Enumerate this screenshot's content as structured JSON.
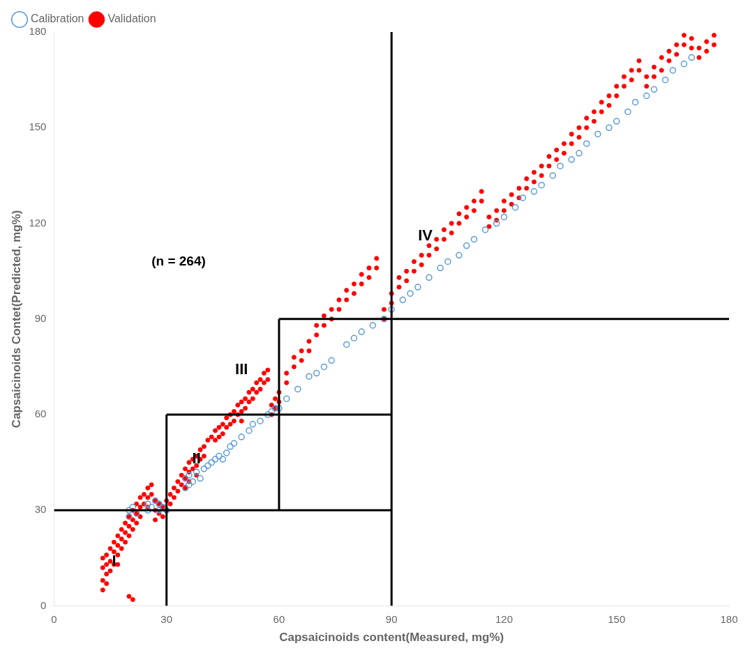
{
  "chart_data": {
    "type": "scatter",
    "xlabel": "Capsaicinoids content(Measured, mg%)",
    "ylabel": "Capsaicinoids Contet(Predicted, mg%)",
    "annotation": {
      "text": "(n = 264)",
      "x": 26,
      "y": 108
    },
    "region_labels": [
      {
        "text": "I",
        "x": 16,
        "y": 14
      },
      {
        "text": "II",
        "x": 38,
        "y": 46
      },
      {
        "text": "III",
        "x": 50,
        "y": 74
      },
      {
        "text": "IV",
        "x": 99,
        "y": 116
      }
    ],
    "xlim": [
      0,
      180
    ],
    "ylim": [
      0,
      180
    ],
    "xticks": [
      0,
      30,
      60,
      90,
      120,
      150,
      180
    ],
    "yticks": [
      0,
      30,
      60,
      90,
      120,
      150,
      180
    ],
    "grid": false,
    "legend": "upper left",
    "lines": {
      "color": "#000000",
      "segments": [
        [
          [
            0,
            30
          ],
          [
            90,
            30
          ]
        ],
        [
          [
            30,
            0
          ],
          [
            30,
            60
          ]
        ],
        [
          [
            30,
            60
          ],
          [
            90,
            60
          ]
        ],
        [
          [
            60,
            30
          ],
          [
            60,
            90
          ]
        ],
        [
          [
            60,
            90
          ],
          [
            180,
            90
          ]
        ],
        [
          [
            90,
            0
          ],
          [
            90,
            180
          ]
        ]
      ]
    },
    "series": [
      {
        "name": "Calibration",
        "color": "#5B9BD5",
        "marker": "open_circle",
        "values": [
          [
            20,
            30
          ],
          [
            20,
            28
          ],
          [
            21,
            31
          ],
          [
            22,
            29
          ],
          [
            25,
            32
          ],
          [
            25,
            30
          ],
          [
            26,
            31
          ],
          [
            27,
            33
          ],
          [
            28,
            30
          ],
          [
            28,
            32
          ],
          [
            29,
            31
          ],
          [
            30,
            30
          ],
          [
            35,
            37
          ],
          [
            35,
            40
          ],
          [
            36,
            38
          ],
          [
            36,
            41
          ],
          [
            37,
            39
          ],
          [
            38,
            42
          ],
          [
            39,
            40
          ],
          [
            40,
            43
          ],
          [
            41,
            44
          ],
          [
            42,
            45
          ],
          [
            43,
            46
          ],
          [
            44,
            47
          ],
          [
            45,
            46
          ],
          [
            46,
            48
          ],
          [
            47,
            50
          ],
          [
            48,
            51
          ],
          [
            50,
            53
          ],
          [
            52,
            55
          ],
          [
            53,
            57
          ],
          [
            55,
            58
          ],
          [
            57,
            60
          ],
          [
            58,
            61
          ],
          [
            59,
            62
          ],
          [
            60,
            62
          ],
          [
            62,
            65
          ],
          [
            65,
            68
          ],
          [
            68,
            72
          ],
          [
            70,
            73
          ],
          [
            72,
            75
          ],
          [
            74,
            77
          ],
          [
            78,
            82
          ],
          [
            80,
            84
          ],
          [
            82,
            86
          ],
          [
            85,
            88
          ],
          [
            88,
            90
          ],
          [
            90,
            93
          ],
          [
            93,
            96
          ],
          [
            95,
            98
          ],
          [
            97,
            100
          ],
          [
            100,
            103
          ],
          [
            103,
            106
          ],
          [
            105,
            108
          ],
          [
            108,
            110
          ],
          [
            110,
            113
          ],
          [
            112,
            115
          ],
          [
            115,
            118
          ],
          [
            118,
            120
          ],
          [
            120,
            122
          ],
          [
            123,
            125
          ],
          [
            125,
            128
          ],
          [
            128,
            130
          ],
          [
            130,
            132
          ],
          [
            133,
            135
          ],
          [
            135,
            138
          ],
          [
            138,
            140
          ],
          [
            140,
            142
          ],
          [
            142,
            145
          ],
          [
            145,
            148
          ],
          [
            148,
            150
          ],
          [
            150,
            152
          ],
          [
            153,
            155
          ],
          [
            155,
            158
          ],
          [
            158,
            160
          ],
          [
            160,
            162
          ],
          [
            163,
            165
          ],
          [
            165,
            168
          ],
          [
            168,
            170
          ],
          [
            170,
            172
          ]
        ]
      },
      {
        "name": "Validation",
        "color": "#FF0000",
        "marker": "circle",
        "values": [
          [
            13,
            15
          ],
          [
            13,
            12
          ],
          [
            13,
            8
          ],
          [
            13,
            5
          ],
          [
            14,
            16
          ],
          [
            14,
            13
          ],
          [
            14,
            10
          ],
          [
            14,
            7
          ],
          [
            15,
            18
          ],
          [
            15,
            14
          ],
          [
            15,
            11
          ],
          [
            16,
            20
          ],
          [
            16,
            17
          ],
          [
            16,
            13
          ],
          [
            17,
            22
          ],
          [
            17,
            19
          ],
          [
            17,
            16
          ],
          [
            17,
            13
          ],
          [
            18,
            24
          ],
          [
            18,
            21
          ],
          [
            18,
            18
          ],
          [
            19,
            26
          ],
          [
            19,
            23
          ],
          [
            19,
            20
          ],
          [
            20,
            28
          ],
          [
            20,
            25
          ],
          [
            20,
            22
          ],
          [
            20,
            3
          ],
          [
            21,
            30
          ],
          [
            21,
            27
          ],
          [
            21,
            24
          ],
          [
            21,
            2
          ],
          [
            22,
            32
          ],
          [
            22,
            29
          ],
          [
            22,
            26
          ],
          [
            23,
            34
          ],
          [
            23,
            31
          ],
          [
            23,
            28
          ],
          [
            24,
            35
          ],
          [
            24,
            32
          ],
          [
            25,
            37
          ],
          [
            25,
            34
          ],
          [
            25,
            31
          ],
          [
            26,
            38
          ],
          [
            26,
            35
          ],
          [
            27,
            33
          ],
          [
            27,
            30
          ],
          [
            27,
            27
          ],
          [
            28,
            32
          ],
          [
            28,
            29
          ],
          [
            29,
            31
          ],
          [
            29,
            28
          ],
          [
            30,
            33
          ],
          [
            30,
            30
          ],
          [
            31,
            35
          ],
          [
            31,
            32
          ],
          [
            32,
            37
          ],
          [
            32,
            34
          ],
          [
            33,
            39
          ],
          [
            33,
            36
          ],
          [
            34,
            41
          ],
          [
            34,
            38
          ],
          [
            35,
            43
          ],
          [
            35,
            40
          ],
          [
            35,
            37
          ],
          [
            36,
            45
          ],
          [
            36,
            42
          ],
          [
            36,
            39
          ],
          [
            37,
            46
          ],
          [
            37,
            43
          ],
          [
            38,
            47
          ],
          [
            38,
            44
          ],
          [
            38,
            41
          ],
          [
            39,
            49
          ],
          [
            39,
            46
          ],
          [
            40,
            50
          ],
          [
            40,
            47
          ],
          [
            41,
            52
          ],
          [
            42,
            53
          ],
          [
            43,
            55
          ],
          [
            43,
            52
          ],
          [
            44,
            56
          ],
          [
            44,
            53
          ],
          [
            45,
            57
          ],
          [
            45,
            54
          ],
          [
            46,
            59
          ],
          [
            46,
            56
          ],
          [
            47,
            60
          ],
          [
            47,
            57
          ],
          [
            48,
            61
          ],
          [
            48,
            58
          ],
          [
            49,
            63
          ],
          [
            49,
            60
          ],
          [
            50,
            64
          ],
          [
            50,
            61
          ],
          [
            50,
            58
          ],
          [
            51,
            65
          ],
          [
            51,
            62
          ],
          [
            52,
            67
          ],
          [
            52,
            64
          ],
          [
            53,
            68
          ],
          [
            53,
            65
          ],
          [
            54,
            70
          ],
          [
            54,
            67
          ],
          [
            55,
            71
          ],
          [
            55,
            68
          ],
          [
            56,
            73
          ],
          [
            56,
            70
          ],
          [
            57,
            74
          ],
          [
            57,
            71
          ],
          [
            58,
            63
          ],
          [
            58,
            60
          ],
          [
            59,
            65
          ],
          [
            59,
            62
          ],
          [
            60,
            67
          ],
          [
            60,
            64
          ],
          [
            62,
            70
          ],
          [
            62,
            73
          ],
          [
            64,
            75
          ],
          [
            64,
            78
          ],
          [
            66,
            80
          ],
          [
            66,
            77
          ],
          [
            68,
            83
          ],
          [
            68,
            80
          ],
          [
            70,
            85
          ],
          [
            70,
            88
          ],
          [
            72,
            88
          ],
          [
            72,
            91
          ],
          [
            74,
            90
          ],
          [
            74,
            93
          ],
          [
            76,
            93
          ],
          [
            76,
            96
          ],
          [
            78,
            96
          ],
          [
            78,
            99
          ],
          [
            80,
            98
          ],
          [
            80,
            101
          ],
          [
            82,
            101
          ],
          [
            82,
            104
          ],
          [
            84,
            103
          ],
          [
            84,
            106
          ],
          [
            86,
            106
          ],
          [
            86,
            109
          ],
          [
            88,
            90
          ],
          [
            88,
            93
          ],
          [
            90,
            95
          ],
          [
            90,
            98
          ],
          [
            92,
            100
          ],
          [
            92,
            103
          ],
          [
            94,
            102
          ],
          [
            94,
            105
          ],
          [
            96,
            105
          ],
          [
            96,
            108
          ],
          [
            98,
            107
          ],
          [
            98,
            110
          ],
          [
            100,
            110
          ],
          [
            100,
            113
          ],
          [
            102,
            112
          ],
          [
            102,
            115
          ],
          [
            104,
            115
          ],
          [
            104,
            118
          ],
          [
            106,
            117
          ],
          [
            106,
            120
          ],
          [
            108,
            120
          ],
          [
            108,
            123
          ],
          [
            110,
            122
          ],
          [
            110,
            125
          ],
          [
            112,
            124
          ],
          [
            112,
            127
          ],
          [
            114,
            127
          ],
          [
            114,
            130
          ],
          [
            116,
            119
          ],
          [
            116,
            122
          ],
          [
            118,
            121
          ],
          [
            118,
            124
          ],
          [
            120,
            124
          ],
          [
            120,
            127
          ],
          [
            122,
            126
          ],
          [
            122,
            129
          ],
          [
            124,
            128
          ],
          [
            124,
            131
          ],
          [
            126,
            131
          ],
          [
            126,
            134
          ],
          [
            128,
            133
          ],
          [
            128,
            136
          ],
          [
            130,
            135
          ],
          [
            130,
            138
          ],
          [
            132,
            138
          ],
          [
            132,
            141
          ],
          [
            134,
            140
          ],
          [
            134,
            143
          ],
          [
            136,
            142
          ],
          [
            136,
            145
          ],
          [
            138,
            145
          ],
          [
            138,
            148
          ],
          [
            140,
            147
          ],
          [
            140,
            150
          ],
          [
            142,
            150
          ],
          [
            142,
            153
          ],
          [
            144,
            152
          ],
          [
            144,
            155
          ],
          [
            146,
            155
          ],
          [
            146,
            158
          ],
          [
            148,
            157
          ],
          [
            148,
            160
          ],
          [
            150,
            160
          ],
          [
            150,
            163
          ],
          [
            152,
            163
          ],
          [
            152,
            166
          ],
          [
            154,
            165
          ],
          [
            154,
            168
          ],
          [
            156,
            168
          ],
          [
            156,
            171
          ],
          [
            158,
            163
          ],
          [
            158,
            166
          ],
          [
            160,
            166
          ],
          [
            160,
            169
          ],
          [
            162,
            168
          ],
          [
            162,
            172
          ],
          [
            164,
            171
          ],
          [
            164,
            174
          ],
          [
            166,
            173
          ],
          [
            166,
            176
          ],
          [
            168,
            176
          ],
          [
            168,
            179
          ],
          [
            170,
            178
          ],
          [
            170,
            175
          ],
          [
            172,
            172
          ],
          [
            172,
            175
          ],
          [
            174,
            174
          ],
          [
            174,
            177
          ],
          [
            176,
            176
          ],
          [
            176,
            179
          ]
        ]
      }
    ]
  }
}
